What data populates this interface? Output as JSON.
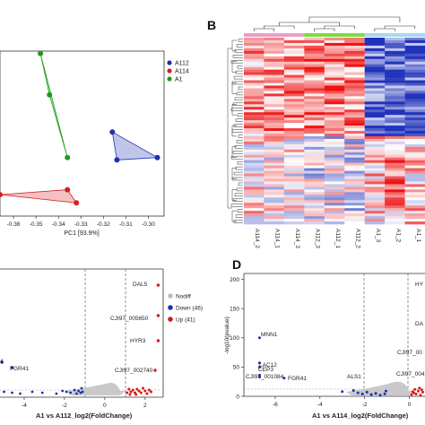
{
  "panels": {
    "B": "B",
    "D": "D"
  },
  "chart_data": [
    {
      "type": "scatter",
      "panel": "A",
      "xlabel": "PC1 [93.9%]",
      "xticks": [
        "-0.36",
        "-0.35",
        "-0.34",
        "-0.33",
        "-0.32",
        "-0.31",
        "-0.30"
      ],
      "xlim": [
        -0.366,
        -0.293
      ],
      "ylim": [
        -1,
        1
      ],
      "legend_position": "top-right",
      "series": [
        {
          "name": "A112",
          "color": "#1f2fb0",
          "points": [
            [
              -0.316,
              0.02
            ],
            [
              -0.296,
              -0.29
            ],
            [
              -0.314,
              -0.32
            ]
          ]
        },
        {
          "name": "A114",
          "color": "#d42020",
          "points": [
            [
              -0.336,
              -0.68
            ],
            [
              -0.332,
              -0.84
            ],
            [
              -0.366,
              -0.74
            ]
          ]
        },
        {
          "name": "A1",
          "color": "#1f9a1f",
          "points": [
            [
              -0.348,
              0.97
            ],
            [
              -0.344,
              0.47
            ],
            [
              -0.336,
              -0.29
            ]
          ]
        }
      ]
    },
    {
      "type": "heatmap",
      "panel": "B",
      "columns": [
        "A114_2",
        "A114_1",
        "A114_3",
        "A112_3",
        "A112_1",
        "A112_2",
        "A1_3",
        "A1_2",
        "A1_1"
      ],
      "group_colors": [
        "#e8a0c8",
        "#7ddc3c",
        "#a8d8f0"
      ],
      "palette": [
        "#2233bb",
        "#ffffff",
        "#ee1111"
      ]
    },
    {
      "type": "scatter",
      "panel": "C",
      "xlabel": "A1 vs A112_log2(FoldChange)",
      "xticks": [
        "-4",
        "-2",
        "0",
        "2"
      ],
      "xlim": [
        -5.2,
        2.9
      ],
      "legend_position": "right",
      "legend": [
        {
          "label": "Nodiff",
          "color": "#bdbdbd"
        },
        {
          "label": "Down (46)",
          "color": "#1a30b8"
        },
        {
          "label": "Up (41)",
          "color": "#d61a1a"
        }
      ],
      "annotations": [
        "DAL5",
        "CJI97_005650",
        "HYR3",
        "CJI97_002740",
        "FGR41",
        "4"
      ]
    },
    {
      "type": "scatter",
      "panel": "D",
      "xlabel": "A1 vs A114_log2(FoldChange)",
      "ylabel": "-log10(pvalue)",
      "xticks": [
        "-6",
        "-4",
        "-2",
        "0"
      ],
      "yticks": [
        "0",
        "50",
        "100",
        "150",
        "200"
      ],
      "xlim": [
        -7.4,
        0.7
      ],
      "ylim": [
        0,
        210
      ],
      "annotations": [
        "MNN1",
        "LAC12",
        "CEP3",
        "CJI97_001084",
        "FGR41",
        "ALS1",
        "HY",
        "DA",
        "CJI97_00",
        "CJI97_004"
      ]
    }
  ]
}
